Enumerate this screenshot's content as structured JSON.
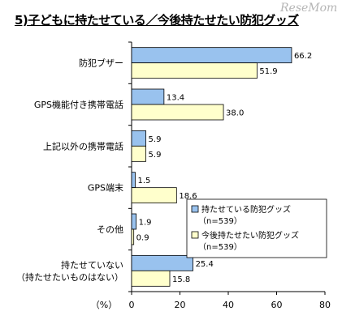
{
  "chart_data": {
    "type": "bar",
    "orientation": "horizontal",
    "title": "5)子どもに持たせている／今後持たせたい防犯グッズ",
    "categories": [
      [
        "防犯ブザー"
      ],
      [
        "GPS機能付き携帯電話"
      ],
      [
        "上記以外の携帯電話"
      ],
      [
        "GPS端末"
      ],
      [
        "その他"
      ],
      [
        "持たせていない",
        "（持たせたいものはない）"
      ]
    ],
    "series": [
      {
        "name": "持たせている防犯グッズ",
        "n_label": "（n=539）",
        "color": "#99c2ee",
        "values": [
          66.2,
          13.4,
          5.9,
          1.5,
          1.9,
          25.4
        ],
        "value_labels": [
          "66.2",
          "13.4",
          "5.9",
          "1.5",
          "1.9",
          "25.4"
        ]
      },
      {
        "name": "今後持たせたい防犯グッズ",
        "n_label": "（n=539）",
        "color": "#ffffcc",
        "values": [
          51.9,
          38.0,
          5.9,
          18.6,
          0.9,
          15.8
        ],
        "value_labels": [
          "51.9",
          "38.0",
          "5.9",
          "18.6",
          "0.9",
          "15.8"
        ]
      }
    ],
    "xlabel": "（%）",
    "xlim": [
      0,
      80
    ],
    "xticks": [
      "0",
      "20",
      "40",
      "60",
      "80"
    ],
    "grid": false,
    "legend": "bottom-right"
  },
  "watermark": "ReseMom"
}
